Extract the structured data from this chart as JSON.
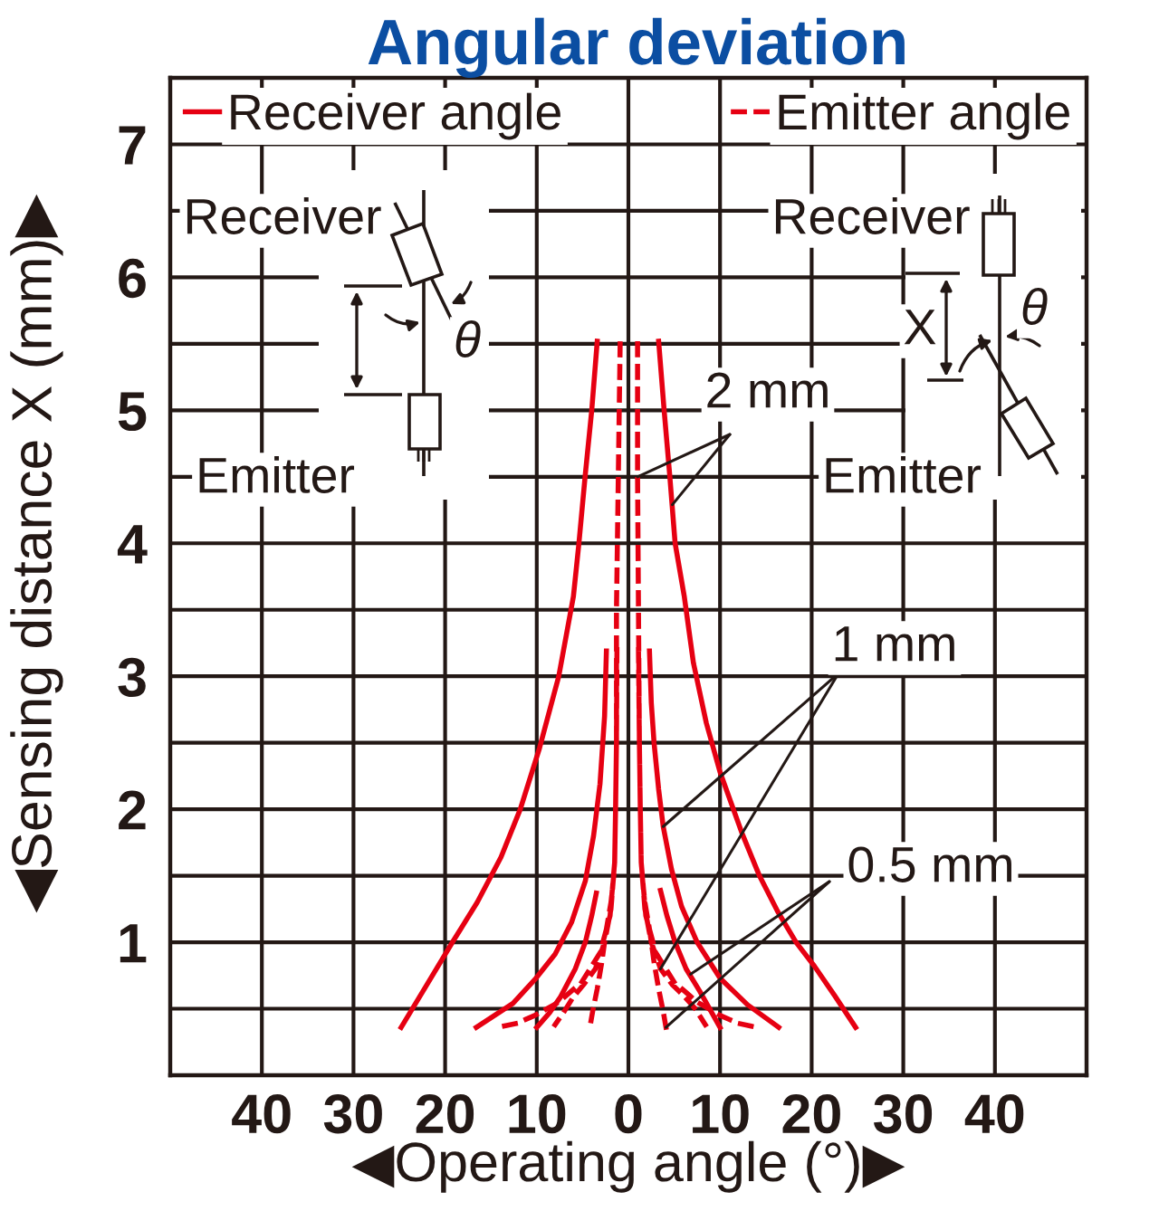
{
  "chart_data": {
    "type": "line",
    "title": "Angular deviation",
    "xlabel": "◀Operating angle (°)▶",
    "ylabel": "◀Sensing distance X (mm)▶",
    "xlim": [
      -50,
      50
    ],
    "ylim": [
      0,
      7.5
    ],
    "xticks": [
      {
        "value": -40,
        "label": "40"
      },
      {
        "value": -30,
        "label": "30"
      },
      {
        "value": -20,
        "label": "20"
      },
      {
        "value": -10,
        "label": "10"
      },
      0,
      10,
      20,
      30,
      40
    ],
    "yticks": [
      {
        "value": 0.5,
        "label": null
      },
      1,
      {
        "value": 1.5,
        "label": null
      },
      2,
      {
        "value": 2.5,
        "label": null
      },
      3,
      {
        "value": 3.5,
        "label": null
      },
      4,
      {
        "value": 4.5,
        "label": null
      },
      5,
      {
        "value": 5.5,
        "label": null
      },
      6,
      {
        "value": 6.5,
        "label": null
      },
      7
    ],
    "grid": true,
    "legend": "top",
    "series": [
      {
        "name": "Receiver angle",
        "color": "#e60012",
        "line_style": "solid",
        "x": [
          -3.4,
          -4.0,
          -4.7,
          -5.4,
          -6.0,
          -7.6,
          -9.7,
          -11.8,
          -13.9,
          -16.5,
          -19.2,
          -22.0,
          -24.8,
          null,
          3.3,
          3.9,
          4.5,
          5.1,
          6.1,
          7.1,
          8.5,
          10.0,
          12.4,
          14.3,
          16.3,
          18.3,
          20.3,
          22.5,
          24.8,
          null,
          -2.4,
          -2.6,
          -3.1,
          -3.8,
          -4.7,
          -6.2,
          -8.0,
          -10.2,
          -12.6,
          -16.6,
          null,
          2.3,
          2.5,
          2.8,
          3.3,
          3.8,
          4.7,
          5.8,
          7.5,
          10.0,
          13.0,
          16.4,
          null,
          -3.5,
          -4.0,
          -4.7,
          -5.8,
          -7.4,
          -8.6,
          -10.0,
          null,
          3.5,
          4.2,
          5.1,
          6.3,
          7.8,
          10.0
        ],
        "values": [
          5.52,
          5.0,
          4.52,
          4.0,
          3.6,
          3.0,
          2.46,
          2.0,
          1.64,
          1.3,
          1.0,
          0.68,
          0.36,
          null,
          5.52,
          5.0,
          4.52,
          4.0,
          3.6,
          3.1,
          2.65,
          2.28,
          1.82,
          1.5,
          1.23,
          1.0,
          0.82,
          0.6,
          0.36,
          null,
          3.19,
          2.7,
          2.19,
          1.8,
          1.46,
          1.15,
          0.91,
          0.72,
          0.54,
          0.36,
          null,
          3.19,
          2.8,
          2.5,
          2.15,
          1.87,
          1.55,
          1.27,
          1.0,
          0.73,
          0.53,
          0.36,
          null,
          1.37,
          1.2,
          1.0,
          0.8,
          0.59,
          0.47,
          0.36,
          null,
          1.39,
          1.2,
          1.0,
          0.8,
          0.63,
          0.36
        ]
      },
      {
        "name": "Emitter angle",
        "color": "#e60012",
        "line_style": "dashed",
        "x": [
          -0.9,
          -1.1,
          -1.3,
          -1.3,
          -1.4,
          -1.5,
          -2.0,
          -3.1,
          -5.1,
          -7.6,
          -10.2,
          -12.2,
          -14.3,
          null,
          1.0,
          1.0,
          1.1,
          1.2,
          1.3,
          1.4,
          1.9,
          3.0,
          5.0,
          7.5,
          10.0,
          12.0,
          14.0,
          null,
          -1.25,
          -1.3,
          -1.4,
          -1.5,
          -1.9,
          -2.6,
          -3.6,
          -4.9,
          -6.1,
          -7.0,
          -8.0,
          null,
          1.1,
          1.2,
          1.3,
          1.4,
          1.8,
          2.5,
          3.5,
          4.8,
          6.0,
          7.3,
          8.4,
          null,
          -1.6,
          -1.9,
          -2.4,
          -2.9,
          -3.4,
          -3.9,
          -4.2,
          null,
          4.1,
          3.8,
          3.3,
          2.8,
          2.3,
          1.8,
          1.5
        ],
        "values": [
          5.5,
          4.5,
          3.5,
          2.5,
          2.0,
          1.6,
          1.2,
          0.92,
          0.7,
          0.55,
          0.45,
          0.39,
          0.36,
          null,
          5.5,
          4.5,
          3.5,
          2.5,
          2.0,
          1.6,
          1.2,
          0.92,
          0.7,
          0.55,
          0.45,
          0.39,
          0.36,
          null,
          3.2,
          2.5,
          2.0,
          1.6,
          1.25,
          1.0,
          0.8,
          0.68,
          0.58,
          0.48,
          0.38,
          null,
          3.2,
          2.5,
          2.0,
          1.6,
          1.25,
          1.0,
          0.8,
          0.68,
          0.6,
          0.5,
          0.38,
          null,
          1.5,
          1.3,
          1.1,
          0.85,
          0.65,
          0.48,
          0.36,
          null,
          0.36,
          0.48,
          0.65,
          0.85,
          1.1,
          1.3,
          1.5
        ]
      }
    ],
    "annotations": [
      "Receiver",
      "Receiver",
      "θ",
      "X",
      "θ",
      {
        "text": "2 mm",
        "x": 4.8,
        "y": 4.29
      },
      "Emitter",
      "Emitter",
      {
        "text": "1 mm",
        "x": 3.8,
        "y": 1.87
      },
      {
        "text": "0.5 mm",
        "x": 6.8,
        "y": 0.76
      }
    ]
  }
}
